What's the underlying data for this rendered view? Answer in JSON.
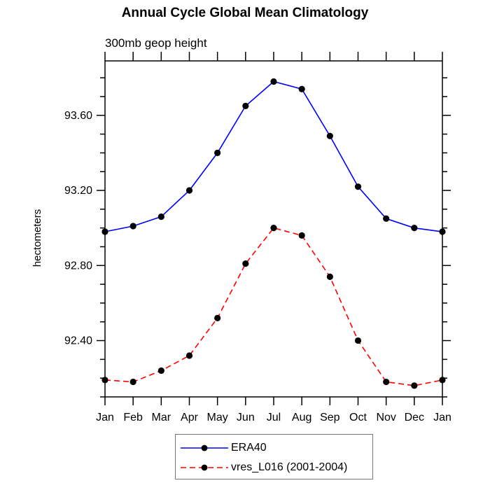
{
  "title": "Annual Cycle Global Mean Climatology",
  "subtitle": "300mb geop height",
  "chart_data": {
    "type": "line",
    "categories": [
      "Jan",
      "Feb",
      "Mar",
      "Apr",
      "May",
      "Jun",
      "Jul",
      "Aug",
      "Sep",
      "Oct",
      "Nov",
      "Dec",
      "Jan"
    ],
    "series": [
      {
        "name": "ERA40",
        "color": "#0000ff",
        "line_style": "solid",
        "marker": "filled-circle",
        "marker_color": "#000000",
        "values": [
          92.98,
          93.01,
          93.06,
          93.2,
          93.4,
          93.65,
          93.78,
          93.74,
          93.49,
          93.22,
          93.05,
          93.0,
          92.98
        ]
      },
      {
        "name": "vres_L016 (2001-2004)",
        "color": "#ff0000",
        "line_style": "dashed",
        "marker": "filled-circle",
        "marker_color": "#000000",
        "values": [
          92.19,
          92.18,
          92.24,
          92.32,
          92.52,
          92.81,
          93.0,
          92.96,
          92.74,
          92.4,
          92.18,
          92.16,
          92.19
        ]
      }
    ],
    "xlabel": "",
    "ylabel": "hectometers",
    "ylim": [
      92.1,
      93.89
    ],
    "yticks_major": [
      92.4,
      92.8,
      93.2,
      93.6
    ],
    "ytick_labels": [
      "92.40",
      "92.80",
      "93.20",
      "93.60"
    ],
    "ytick_minor_step": 0.1,
    "grid": false,
    "legend_position": "bottom-center",
    "axis_color": "#000000"
  }
}
